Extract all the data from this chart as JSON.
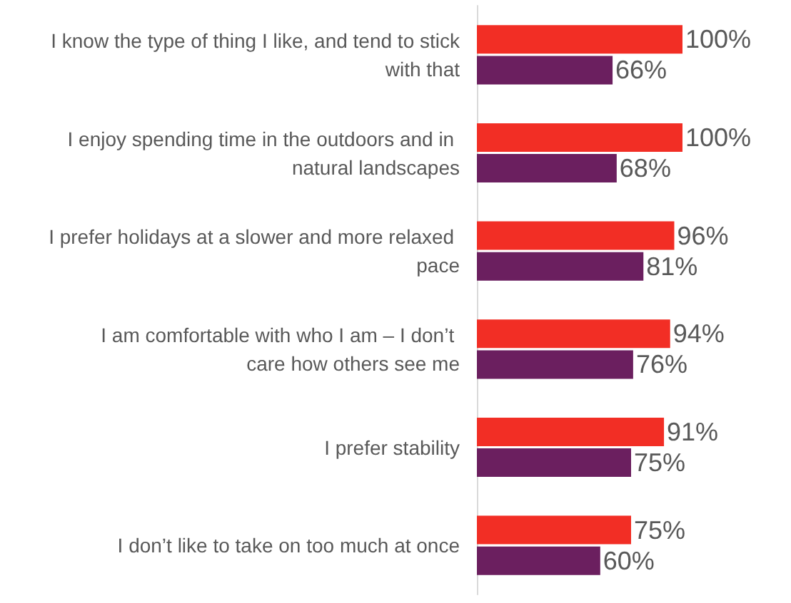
{
  "chart_data": {
    "type": "bar",
    "orientation": "horizontal",
    "categories": [
      "I know the type of thing I like, and tend to stick with that",
      "I enjoy spending time in the outdoors and in natural landscapes",
      "I prefer holidays at a slower and more relaxed pace",
      "I am comfortable with who I am – I don’t care how others see me",
      "I prefer stability",
      "I don’t like to take on too much at once"
    ],
    "series": [
      {
        "color": "#f22e25",
        "values": [
          100,
          100,
          96,
          94,
          91,
          75
        ],
        "value_labels": [
          "100%",
          "100%",
          "96%",
          "94%",
          "91%",
          "75%"
        ]
      },
      {
        "color": "#6b1f5f",
        "values": [
          66,
          68,
          81,
          76,
          75,
          60
        ],
        "value_labels": [
          "66%",
          "68%",
          "81%",
          "76%",
          "75%",
          "60%"
        ]
      }
    ]
  }
}
